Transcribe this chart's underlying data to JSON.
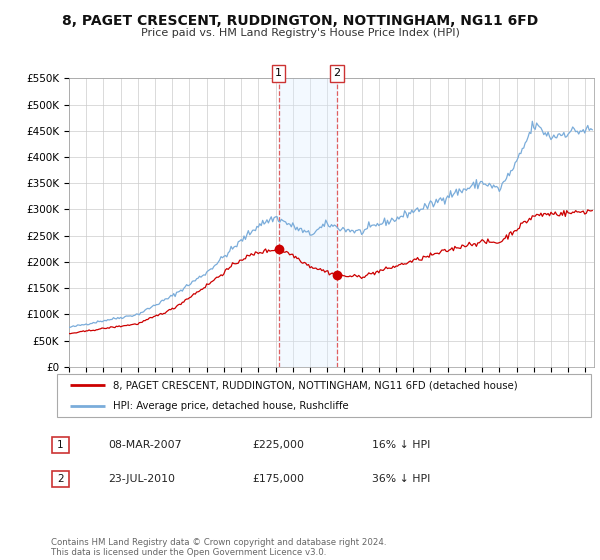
{
  "title": "8, PAGET CRESCENT, RUDDINGTON, NOTTINGHAM, NG11 6FD",
  "subtitle": "Price paid vs. HM Land Registry's House Price Index (HPI)",
  "legend_label_red": "8, PAGET CRESCENT, RUDDINGTON, NOTTINGHAM, NG11 6FD (detached house)",
  "legend_label_blue": "HPI: Average price, detached house, Rushcliffe",
  "transaction1_label": "1",
  "transaction1_date": "08-MAR-2007",
  "transaction1_price": "£225,000",
  "transaction1_hpi": "16% ↓ HPI",
  "transaction2_label": "2",
  "transaction2_date": "23-JUL-2010",
  "transaction2_price": "£175,000",
  "transaction2_hpi": "36% ↓ HPI",
  "footer": "Contains HM Land Registry data © Crown copyright and database right 2024.\nThis data is licensed under the Open Government Licence v3.0.",
  "ylim": [
    0,
    550000
  ],
  "yticks": [
    0,
    50000,
    100000,
    150000,
    200000,
    250000,
    300000,
    350000,
    400000,
    450000,
    500000,
    550000
  ],
  "ytick_labels": [
    "£0",
    "£50K",
    "£100K",
    "£150K",
    "£200K",
    "£250K",
    "£300K",
    "£350K",
    "£400K",
    "£450K",
    "£500K",
    "£550K"
  ],
  "color_red": "#cc0000",
  "color_blue": "#7aacda",
  "color_shading": "#ddeeff",
  "background_color": "#ffffff",
  "grid_color": "#cccccc",
  "transaction1_x": 2007.18,
  "transaction1_y": 225000,
  "transaction2_x": 2010.55,
  "transaction2_y": 175000,
  "vline1_x": 2007.18,
  "vline2_x": 2010.55,
  "xmin": 1995.0,
  "xmax": 2025.5
}
